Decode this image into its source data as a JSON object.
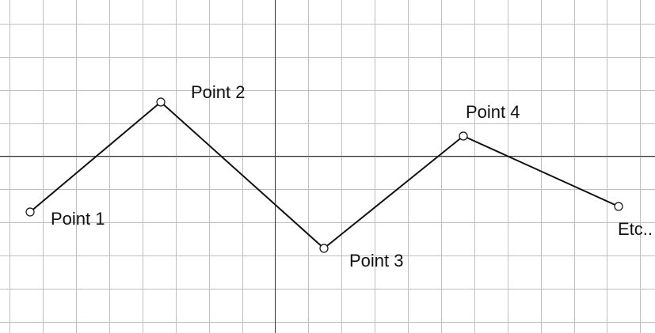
{
  "diagram": {
    "points": [
      {
        "label": "Point 1"
      },
      {
        "label": "Point 2"
      },
      {
        "label": "Point 3"
      },
      {
        "label": "Point 4"
      },
      {
        "label": "Etc.."
      }
    ]
  },
  "colors": {
    "grid": "#bfbfbf",
    "axis": "#333333",
    "line": "#111111",
    "background": "#ffffff"
  }
}
